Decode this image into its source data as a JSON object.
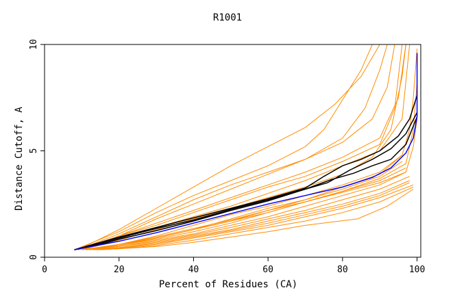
{
  "chart_data": {
    "type": "line",
    "title": "R1001",
    "xlabel": "Percent of Residues (CA)",
    "ylabel": "Distance Cutoff, A",
    "xlim": [
      0,
      101
    ],
    "ylim": [
      0,
      10
    ],
    "x_ticks": [
      0,
      20,
      40,
      60,
      80,
      100
    ],
    "y_ticks": [
      0,
      5,
      10
    ],
    "grid": false,
    "legend": "none",
    "colors": {
      "orange": "#ff8c00",
      "black": "#000000",
      "blue": "#0000ff",
      "frame": "#000000"
    },
    "series": [
      {
        "color": "orange",
        "points": [
          [
            8,
            0.35
          ],
          [
            20,
            1.2
          ],
          [
            30,
            2.1
          ],
          [
            40,
            2.9
          ],
          [
            50,
            3.6
          ],
          [
            60,
            4.3
          ],
          [
            70,
            5.2
          ],
          [
            75,
            6.0
          ],
          [
            80,
            7.4
          ],
          [
            85,
            8.8
          ],
          [
            88,
            10
          ]
        ]
      },
      {
        "color": "orange",
        "points": [
          [
            9,
            0.35
          ],
          [
            20,
            1.3
          ],
          [
            30,
            2.3
          ],
          [
            40,
            3.3
          ],
          [
            50,
            4.3
          ],
          [
            60,
            5.2
          ],
          [
            70,
            6.1
          ],
          [
            78,
            7.2
          ],
          [
            85,
            8.5
          ],
          [
            90,
            10
          ]
        ]
      },
      {
        "color": "orange",
        "points": [
          [
            9,
            0.35
          ],
          [
            20,
            1.1
          ],
          [
            30,
            1.9
          ],
          [
            40,
            2.7
          ],
          [
            50,
            3.4
          ],
          [
            60,
            4.0
          ],
          [
            70,
            4.6
          ],
          [
            80,
            5.6
          ],
          [
            86,
            7.0
          ],
          [
            90,
            8.8
          ],
          [
            92,
            10
          ]
        ]
      },
      {
        "color": "orange",
        "points": [
          [
            10,
            0.35
          ],
          [
            20,
            1.0
          ],
          [
            30,
            1.8
          ],
          [
            40,
            2.5
          ],
          [
            50,
            3.2
          ],
          [
            60,
            3.9
          ],
          [
            70,
            4.6
          ],
          [
            80,
            5.4
          ],
          [
            88,
            6.5
          ],
          [
            92,
            8.0
          ],
          [
            94,
            10
          ]
        ]
      },
      {
        "color": "orange",
        "points": [
          [
            9,
            0.35
          ],
          [
            20,
            1.0
          ],
          [
            30,
            1.5
          ],
          [
            40,
            2.1
          ],
          [
            50,
            2.7
          ],
          [
            60,
            3.3
          ],
          [
            70,
            3.8
          ],
          [
            80,
            4.5
          ],
          [
            90,
            5.3
          ],
          [
            94,
            7.0
          ],
          [
            96,
            10
          ]
        ]
      },
      {
        "color": "orange",
        "points": [
          [
            9,
            0.35
          ],
          [
            20,
            0.9
          ],
          [
            30,
            1.4
          ],
          [
            40,
            1.9
          ],
          [
            50,
            2.4
          ],
          [
            60,
            3.0
          ],
          [
            70,
            3.6
          ],
          [
            80,
            4.3
          ],
          [
            90,
            5.0
          ],
          [
            96,
            6.5
          ],
          [
            98,
            10
          ]
        ]
      },
      {
        "color": "orange",
        "points": [
          [
            10,
            0.35
          ],
          [
            20,
            1.0
          ],
          [
            30,
            1.6
          ],
          [
            40,
            2.2
          ],
          [
            50,
            2.8
          ],
          [
            60,
            3.4
          ],
          [
            70,
            4.0
          ],
          [
            80,
            4.7
          ],
          [
            90,
            5.6
          ],
          [
            95,
            7.5
          ],
          [
            97,
            10
          ]
        ]
      },
      {
        "color": "orange",
        "points": [
          [
            10,
            0.35
          ],
          [
            20,
            0.8
          ],
          [
            30,
            1.3
          ],
          [
            40,
            1.8
          ],
          [
            50,
            2.3
          ],
          [
            60,
            2.8
          ],
          [
            70,
            3.3
          ],
          [
            80,
            3.9
          ],
          [
            88,
            4.7
          ],
          [
            93,
            6.0
          ],
          [
            96,
            8.5
          ],
          [
            97,
            10
          ]
        ]
      },
      {
        "color": "orange",
        "points": [
          [
            10,
            0.35
          ],
          [
            20,
            0.6
          ],
          [
            30,
            1.0
          ],
          [
            40,
            1.5
          ],
          [
            50,
            2.0
          ],
          [
            60,
            2.4
          ],
          [
            70,
            2.9
          ],
          [
            80,
            3.4
          ],
          [
            90,
            4.0
          ],
          [
            96,
            4.8
          ]
        ]
      },
      {
        "color": "orange",
        "points": [
          [
            10,
            0.35
          ],
          [
            20,
            0.6
          ],
          [
            30,
            0.9
          ],
          [
            40,
            1.3
          ],
          [
            50,
            1.8
          ],
          [
            60,
            2.3
          ],
          [
            70,
            2.7
          ],
          [
            80,
            3.2
          ],
          [
            90,
            3.8
          ],
          [
            96,
            4.5
          ]
        ]
      },
      {
        "color": "orange",
        "points": [
          [
            11,
            0.35
          ],
          [
            20,
            0.55
          ],
          [
            30,
            0.85
          ],
          [
            40,
            1.2
          ],
          [
            50,
            1.6
          ],
          [
            60,
            2.1
          ],
          [
            70,
            2.6
          ],
          [
            80,
            3.1
          ],
          [
            90,
            3.6
          ],
          [
            97,
            4.2
          ]
        ]
      },
      {
        "color": "orange",
        "points": [
          [
            12,
            0.35
          ],
          [
            20,
            0.5
          ],
          [
            30,
            0.8
          ],
          [
            40,
            1.1
          ],
          [
            50,
            1.5
          ],
          [
            60,
            1.9
          ],
          [
            70,
            2.4
          ],
          [
            80,
            2.9
          ],
          [
            90,
            3.4
          ],
          [
            97,
            4.0
          ]
        ]
      },
      {
        "color": "orange",
        "points": [
          [
            12,
            0.35
          ],
          [
            20,
            0.5
          ],
          [
            30,
            0.75
          ],
          [
            40,
            1.05
          ],
          [
            50,
            1.4
          ],
          [
            60,
            1.8
          ],
          [
            70,
            2.2
          ],
          [
            80,
            2.7
          ],
          [
            90,
            3.2
          ],
          [
            98,
            3.8
          ]
        ]
      },
      {
        "color": "orange",
        "points": [
          [
            13,
            0.35
          ],
          [
            20,
            0.45
          ],
          [
            30,
            0.7
          ],
          [
            40,
            1.0
          ],
          [
            50,
            1.3
          ],
          [
            60,
            1.7
          ],
          [
            70,
            2.1
          ],
          [
            80,
            2.5
          ],
          [
            90,
            3.0
          ],
          [
            98,
            3.6
          ]
        ]
      },
      {
        "color": "orange",
        "points": [
          [
            13,
            0.35
          ],
          [
            20,
            0.45
          ],
          [
            30,
            0.65
          ],
          [
            40,
            0.95
          ],
          [
            50,
            1.25
          ],
          [
            60,
            1.6
          ],
          [
            70,
            2.0
          ],
          [
            80,
            2.4
          ],
          [
            90,
            2.9
          ],
          [
            98,
            3.5
          ]
        ]
      },
      {
        "color": "orange",
        "points": [
          [
            14,
            0.35
          ],
          [
            20,
            0.42
          ],
          [
            30,
            0.6
          ],
          [
            40,
            0.9
          ],
          [
            50,
            1.2
          ],
          [
            60,
            1.5
          ],
          [
            70,
            1.9
          ],
          [
            80,
            2.3
          ],
          [
            90,
            2.8
          ],
          [
            99,
            3.4
          ]
        ]
      },
      {
        "color": "orange",
        "points": [
          [
            14,
            0.35
          ],
          [
            20,
            0.4
          ],
          [
            30,
            0.55
          ],
          [
            40,
            0.8
          ],
          [
            50,
            1.1
          ],
          [
            60,
            1.4
          ],
          [
            70,
            1.7
          ],
          [
            80,
            2.1
          ],
          [
            90,
            2.6
          ],
          [
            99,
            3.3
          ]
        ]
      },
      {
        "color": "orange",
        "points": [
          [
            15,
            0.35
          ],
          [
            20,
            0.4
          ],
          [
            30,
            0.5
          ],
          [
            40,
            0.7
          ],
          [
            50,
            0.95
          ],
          [
            60,
            1.2
          ],
          [
            70,
            1.5
          ],
          [
            84,
            1.8
          ],
          [
            92,
            2.4
          ],
          [
            99,
            3.2
          ]
        ]
      },
      {
        "color": "orange",
        "points": [
          [
            11,
            0.35
          ],
          [
            20,
            0.55
          ],
          [
            30,
            0.9
          ],
          [
            40,
            1.3
          ],
          [
            50,
            1.7
          ],
          [
            60,
            2.2
          ],
          [
            70,
            2.7
          ],
          [
            80,
            3.3
          ],
          [
            90,
            3.9
          ],
          [
            96,
            4.8
          ],
          [
            98,
            6.0
          ],
          [
            99,
            7.5
          ],
          [
            100,
            9.8
          ]
        ]
      },
      {
        "color": "orange",
        "points": [
          [
            11,
            0.35
          ],
          [
            20,
            0.55
          ],
          [
            30,
            0.9
          ],
          [
            40,
            1.3
          ],
          [
            50,
            1.7
          ],
          [
            60,
            2.1
          ],
          [
            70,
            2.6
          ],
          [
            80,
            3.1
          ],
          [
            90,
            3.7
          ],
          [
            97,
            4.4
          ],
          [
            99,
            6.0
          ],
          [
            100,
            8.2
          ]
        ]
      },
      {
        "color": "orange",
        "points": [
          [
            12,
            0.35
          ],
          [
            20,
            0.6
          ],
          [
            30,
            0.95
          ],
          [
            40,
            1.35
          ],
          [
            50,
            1.75
          ],
          [
            60,
            2.2
          ],
          [
            70,
            2.6
          ],
          [
            80,
            3.05
          ],
          [
            90,
            3.5
          ],
          [
            97,
            4.0
          ],
          [
            99,
            5.2
          ],
          [
            100,
            6.5
          ]
        ]
      },
      {
        "color": "black",
        "points": [
          [
            8,
            0.35
          ],
          [
            15,
            0.7
          ],
          [
            20,
            0.95
          ],
          [
            30,
            1.4
          ],
          [
            40,
            1.85
          ],
          [
            50,
            2.3
          ],
          [
            60,
            2.75
          ],
          [
            70,
            3.25
          ],
          [
            75,
            3.8
          ],
          [
            80,
            4.3
          ],
          [
            85,
            4.6
          ],
          [
            90,
            5.0
          ],
          [
            95,
            5.7
          ],
          [
            98,
            6.5
          ],
          [
            100,
            7.6
          ]
        ]
      },
      {
        "color": "black",
        "points": [
          [
            8,
            0.35
          ],
          [
            15,
            0.65
          ],
          [
            20,
            0.9
          ],
          [
            30,
            1.35
          ],
          [
            40,
            1.75
          ],
          [
            50,
            2.25
          ],
          [
            60,
            2.7
          ],
          [
            70,
            3.2
          ],
          [
            77,
            3.65
          ],
          [
            83,
            3.95
          ],
          [
            88,
            4.3
          ],
          [
            93,
            4.6
          ],
          [
            97,
            5.3
          ],
          [
            100,
            6.6
          ]
        ]
      },
      {
        "color": "black",
        "points": [
          [
            8,
            0.35
          ],
          [
            15,
            0.6
          ],
          [
            20,
            0.85
          ],
          [
            30,
            1.25
          ],
          [
            40,
            1.7
          ],
          [
            50,
            2.2
          ],
          [
            60,
            2.65
          ],
          [
            70,
            3.2
          ],
          [
            76,
            3.5
          ],
          [
            82,
            4.1
          ],
          [
            88,
            4.6
          ],
          [
            93,
            5.1
          ],
          [
            97,
            5.8
          ],
          [
            100,
            6.8
          ]
        ]
      },
      {
        "color": "blue",
        "points": [
          [
            8,
            0.35
          ],
          [
            20,
            0.75
          ],
          [
            30,
            1.15
          ],
          [
            40,
            1.6
          ],
          [
            50,
            2.05
          ],
          [
            60,
            2.5
          ],
          [
            70,
            2.9
          ],
          [
            80,
            3.3
          ],
          [
            88,
            3.75
          ],
          [
            93,
            4.2
          ],
          [
            97,
            4.9
          ],
          [
            99,
            5.6
          ],
          [
            100,
            6.6
          ],
          [
            100,
            9.6
          ]
        ]
      }
    ]
  }
}
